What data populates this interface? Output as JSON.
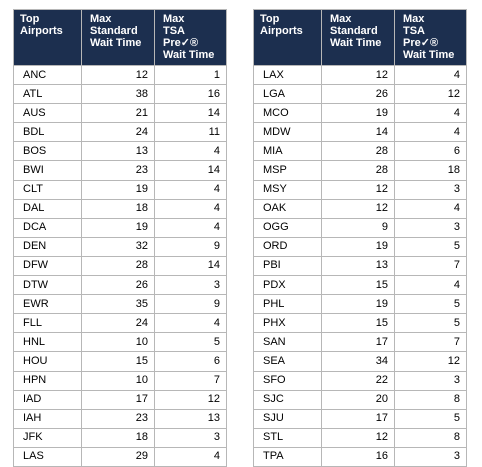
{
  "headers": {
    "airport": "Top\nAirports",
    "standard": "Max\nStandard\nWait Time",
    "precheck": "Max\nTSA Pre✓®\nWait Time"
  },
  "left_table": [
    [
      "ANC",
      "12",
      "1"
    ],
    [
      "ATL",
      "38",
      "16"
    ],
    [
      "AUS",
      "21",
      "14"
    ],
    [
      "BDL",
      "24",
      "11"
    ],
    [
      "BOS",
      "13",
      "4"
    ],
    [
      "BWI",
      "23",
      "14"
    ],
    [
      "CLT",
      "19",
      "4"
    ],
    [
      "DAL",
      "18",
      "4"
    ],
    [
      "DCA",
      "19",
      "4"
    ],
    [
      "DEN",
      "32",
      "9"
    ],
    [
      "DFW",
      "28",
      "14"
    ],
    [
      "DTW",
      "26",
      "3"
    ],
    [
      "EWR",
      "35",
      "9"
    ],
    [
      "FLL",
      "24",
      "4"
    ],
    [
      "HNL",
      "10",
      "5"
    ],
    [
      "HOU",
      "15",
      "6"
    ],
    [
      "HPN",
      "10",
      "7"
    ],
    [
      "IAD",
      "17",
      "12"
    ],
    [
      "IAH",
      "23",
      "13"
    ],
    [
      "JFK",
      "18",
      "3"
    ],
    [
      "LAS",
      "29",
      "4"
    ]
  ],
  "right_table": [
    [
      "LAX",
      "12",
      "4"
    ],
    [
      "LGA",
      "26",
      "12"
    ],
    [
      "MCO",
      "19",
      "4"
    ],
    [
      "MDW",
      "14",
      "4"
    ],
    [
      "MIA",
      "28",
      "6"
    ],
    [
      "MSP",
      "28",
      "18"
    ],
    [
      "MSY",
      "12",
      "3"
    ],
    [
      "OAK",
      "12",
      "4"
    ],
    [
      "OGG",
      "9",
      "3"
    ],
    [
      "ORD",
      "19",
      "5"
    ],
    [
      "PBI",
      "13",
      "7"
    ],
    [
      "PDX",
      "15",
      "4"
    ],
    [
      "PHL",
      "19",
      "5"
    ],
    [
      "PHX",
      "15",
      "5"
    ],
    [
      "SAN",
      "17",
      "7"
    ],
    [
      "SEA",
      "34",
      "12"
    ],
    [
      "SFO",
      "22",
      "3"
    ],
    [
      "SJC",
      "20",
      "8"
    ],
    [
      "SJU",
      "17",
      "5"
    ],
    [
      "STL",
      "12",
      "8"
    ],
    [
      "TPA",
      "16",
      "3"
    ]
  ],
  "colors": {
    "header_background": "#1c2f4f",
    "header_text": "#ffffff",
    "grid": "#b7b7b7"
  }
}
